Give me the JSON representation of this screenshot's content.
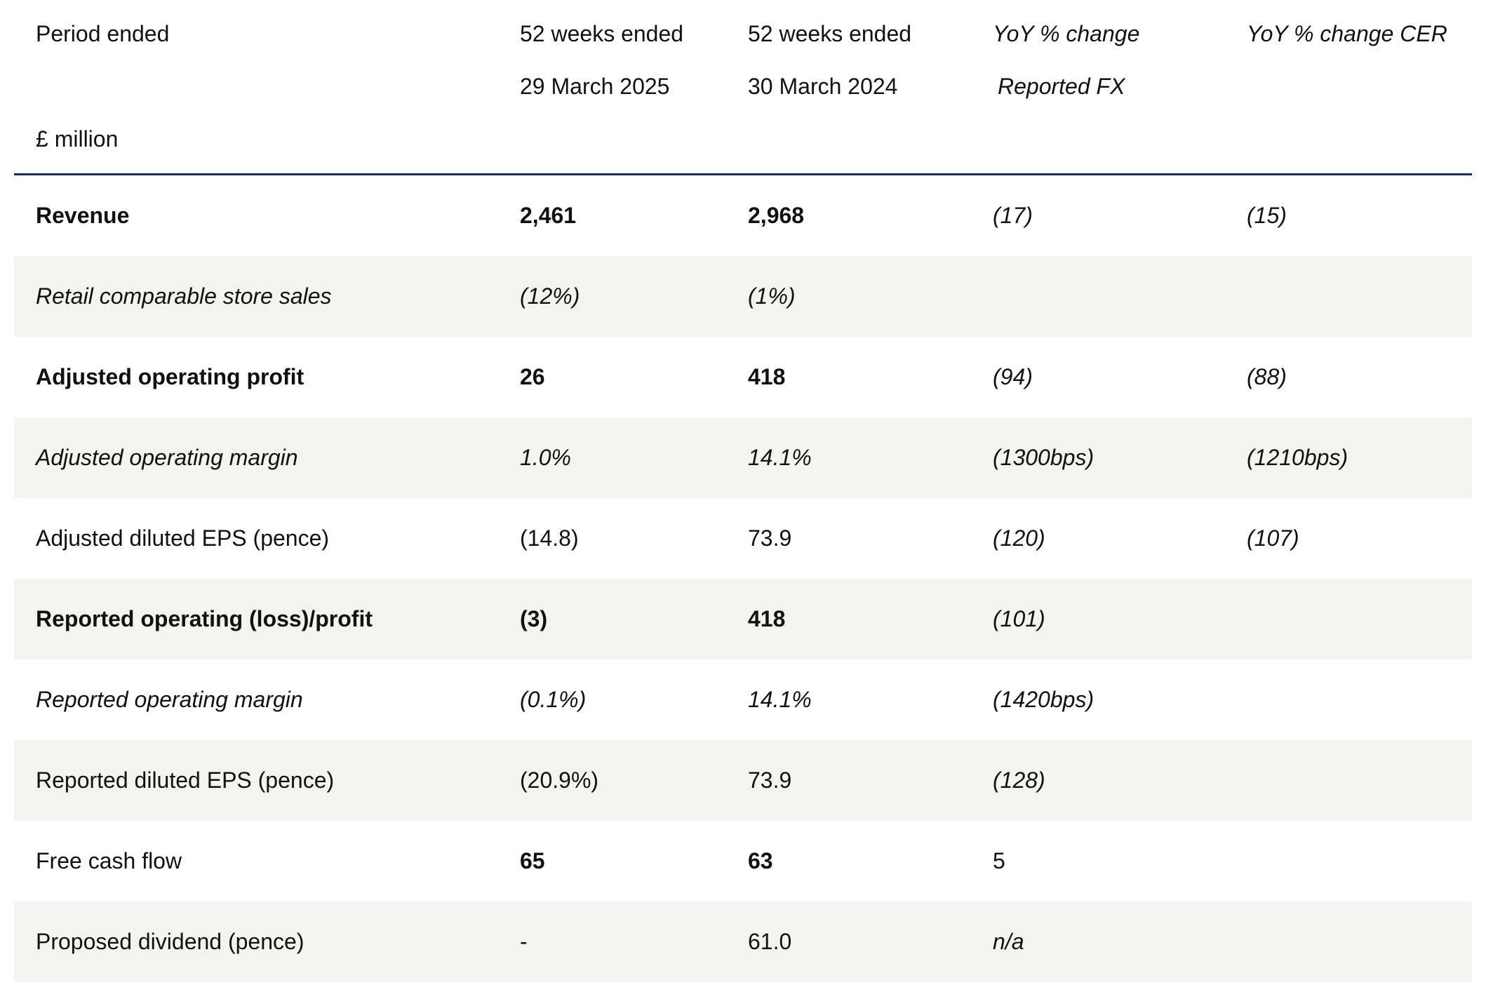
{
  "header": {
    "col0_line1": "Period ended",
    "col0_line3": "£ million",
    "col1_line1": "52 weeks ended",
    "col1_line2": "29 March 2025",
    "col2_line1": "52 weeks ended",
    "col2_line2": "30 March 2024",
    "col3_line1": "YoY % change",
    "col3_line2": "Reported FX",
    "col4_line1": "YoY % change CER"
  },
  "rows": [
    {
      "label": "Revenue",
      "fy25": "2,461",
      "fy24": "2,968",
      "yoy": "(17)",
      "cer": "(15)"
    },
    {
      "label": "Retail comparable store sales",
      "fy25": "(12%)",
      "fy24": "(1%)",
      "yoy": "",
      "cer": ""
    },
    {
      "label": "Adjusted operating profit",
      "fy25": "26",
      "fy24": "418",
      "yoy": "(94)",
      "cer": "(88)"
    },
    {
      "label": "Adjusted operating margin",
      "fy25": "1.0%",
      "fy24": "14.1%",
      "yoy": "(1300bps)",
      "cer": "(1210bps)"
    },
    {
      "label": "Adjusted diluted EPS (pence)",
      "fy25": "(14.8)",
      "fy24": "73.9",
      "yoy": "(120)",
      "cer": "(107)"
    },
    {
      "label": "Reported operating (loss)/profit",
      "fy25": "(3)",
      "fy24": "418",
      "yoy": "(101)",
      "cer": ""
    },
    {
      "label": "Reported operating margin",
      "fy25": "(0.1%)",
      "fy24": "14.1%",
      "yoy": "(1420bps)",
      "cer": ""
    },
    {
      "label": "Reported diluted EPS (pence)",
      "fy25": "(20.9%)",
      "fy24": "73.9",
      "yoy": "(128)",
      "cer": ""
    },
    {
      "label": "Free cash flow",
      "fy25": "65",
      "fy24": "63",
      "yoy": "5",
      "cer": ""
    },
    {
      "label": "Proposed dividend (pence)",
      "fy25": "-",
      "fy24": "61.0",
      "yoy": "n/a",
      "cer": ""
    }
  ],
  "colors": {
    "header_rule": "#1f2a5c",
    "row_shade": "#f3f3f0",
    "text": "#111111"
  }
}
